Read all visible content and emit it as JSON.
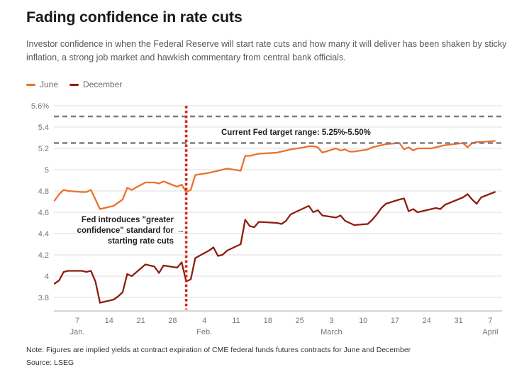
{
  "header": {
    "title": "Fading confidence in rate cuts",
    "subtitle": "Investor confidence in when the Federal Reserve will start rate cuts and how many it will deliver has been shaken by sticky inflation, a strong job market and hawkish commentary from central bank officials."
  },
  "legend": [
    {
      "label": "June",
      "color": "#EB712F"
    },
    {
      "label": "December",
      "color": "#8F1D12"
    }
  ],
  "annotations": {
    "target_range": "Current Fed target range: 5.25%-5.50%",
    "event_line1": "Fed introduces \"greater",
    "event_line2": "confidence\" standard for",
    "event_line3": "starting rate cuts",
    "arrow": "→"
  },
  "footer": {
    "note": "Note: Figures are implied yields at contract expiration of CME federal funds futures contracts for June and December",
    "source": "Source: LSEG"
  },
  "chart_data": {
    "type": "line",
    "unit": "implied yield, %",
    "x_axis_note": "days are calendar offsets from Jan 2",
    "ylim": [
      3.67,
      5.6
    ],
    "grid": true,
    "yticks": [
      {
        "label": "5.6%",
        "v": 5.6
      },
      {
        "label": "5.4",
        "v": 5.4
      },
      {
        "label": "5.2",
        "v": 5.2
      },
      {
        "label": "5",
        "v": 5.0
      },
      {
        "label": "4.8",
        "v": 4.8
      },
      {
        "label": "4.6",
        "v": 4.6
      },
      {
        "label": "4.4",
        "v": 4.4
      },
      {
        "label": "4.2",
        "v": 4.2
      },
      {
        "label": "4",
        "v": 4.0
      },
      {
        "label": "3.8",
        "v": 3.8
      }
    ],
    "xticks": [
      {
        "label": "7",
        "day": 5
      },
      {
        "label": "14",
        "day": 12
      },
      {
        "label": "21",
        "day": 19
      },
      {
        "label": "28",
        "day": 26
      },
      {
        "label": "4",
        "day": 33
      },
      {
        "label": "11",
        "day": 40
      },
      {
        "label": "18",
        "day": 47
      },
      {
        "label": "25",
        "day": 54
      },
      {
        "label": "3",
        "day": 61
      },
      {
        "label": "10",
        "day": 68
      },
      {
        "label": "17",
        "day": 75
      },
      {
        "label": "24",
        "day": 82
      },
      {
        "label": "31",
        "day": 89
      },
      {
        "label": "7",
        "day": 96
      }
    ],
    "month_labels": [
      {
        "label": "Jan.",
        "day": 5
      },
      {
        "label": "Feb.",
        "day": 33
      },
      {
        "label": "March",
        "day": 61
      },
      {
        "label": "April",
        "day": 96
      }
    ],
    "reference_lines": {
      "upper": 5.5,
      "lower": 5.25,
      "color": "#7D7D7D"
    },
    "event_line": {
      "day": 29,
      "date": "Jan 31",
      "color": "#D3291C"
    },
    "colors": {
      "grid": "#DDDDDD",
      "axis": "#A8A8A8"
    },
    "series": [
      {
        "name": "June",
        "color": "#EB712F",
        "points": [
          [
            0,
            4.71
          ],
          [
            1,
            4.77
          ],
          [
            2,
            4.81
          ],
          [
            3,
            4.8
          ],
          [
            6,
            4.79
          ],
          [
            7,
            4.79
          ],
          [
            8,
            4.81
          ],
          [
            9,
            4.72
          ],
          [
            10,
            4.63
          ],
          [
            13,
            4.66
          ],
          [
            14,
            4.69
          ],
          [
            15,
            4.72
          ],
          [
            16,
            4.83
          ],
          [
            17,
            4.81
          ],
          [
            20,
            4.88
          ],
          [
            21,
            4.88
          ],
          [
            22,
            4.88
          ],
          [
            23,
            4.87
          ],
          [
            24,
            4.89
          ],
          [
            27,
            4.84
          ],
          [
            28,
            4.86
          ],
          [
            29,
            4.79
          ],
          [
            30,
            4.81
          ],
          [
            31,
            4.95
          ],
          [
            34,
            4.97
          ],
          [
            35,
            4.98
          ],
          [
            36,
            4.99
          ],
          [
            37,
            5.0
          ],
          [
            38,
            5.01
          ],
          [
            41,
            4.99
          ],
          [
            42,
            5.13
          ],
          [
            43,
            5.13
          ],
          [
            44,
            5.14
          ],
          [
            45,
            5.15
          ],
          [
            49,
            5.16
          ],
          [
            50,
            5.17
          ],
          [
            51,
            5.18
          ],
          [
            52,
            5.19
          ],
          [
            55,
            5.21
          ],
          [
            56,
            5.22
          ],
          [
            57,
            5.22
          ],
          [
            58,
            5.21
          ],
          [
            59,
            5.16
          ],
          [
            62,
            5.2
          ],
          [
            63,
            5.18
          ],
          [
            64,
            5.19
          ],
          [
            65,
            5.17
          ],
          [
            66,
            5.17
          ],
          [
            69,
            5.19
          ],
          [
            70,
            5.21
          ],
          [
            71,
            5.22
          ],
          [
            72,
            5.23
          ],
          [
            73,
            5.24
          ],
          [
            76,
            5.25
          ],
          [
            77,
            5.19
          ],
          [
            78,
            5.21
          ],
          [
            79,
            5.18
          ],
          [
            80,
            5.2
          ],
          [
            83,
            5.2
          ],
          [
            84,
            5.21
          ],
          [
            85,
            5.22
          ],
          [
            86,
            5.23
          ],
          [
            90,
            5.25
          ],
          [
            91,
            5.21
          ],
          [
            92,
            5.25
          ],
          [
            93,
            5.26
          ],
          [
            94,
            5.26
          ],
          [
            97,
            5.27
          ]
        ]
      },
      {
        "name": "December",
        "color": "#8F1D12",
        "points": [
          [
            0,
            3.93
          ],
          [
            1,
            3.96
          ],
          [
            2,
            4.04
          ],
          [
            3,
            4.05
          ],
          [
            6,
            4.05
          ],
          [
            7,
            4.04
          ],
          [
            8,
            4.05
          ],
          [
            9,
            3.95
          ],
          [
            10,
            3.75
          ],
          [
            13,
            3.78
          ],
          [
            14,
            3.81
          ],
          [
            15,
            3.85
          ],
          [
            16,
            4.02
          ],
          [
            17,
            4.0
          ],
          [
            20,
            4.11
          ],
          [
            21,
            4.1
          ],
          [
            22,
            4.09
          ],
          [
            23,
            4.03
          ],
          [
            24,
            4.1
          ],
          [
            27,
            4.08
          ],
          [
            28,
            4.13
          ],
          [
            29,
            3.95
          ],
          [
            30,
            3.97
          ],
          [
            31,
            4.17
          ],
          [
            34,
            4.24
          ],
          [
            35,
            4.27
          ],
          [
            36,
            4.19
          ],
          [
            37,
            4.2
          ],
          [
            38,
            4.24
          ],
          [
            41,
            4.3
          ],
          [
            42,
            4.53
          ],
          [
            43,
            4.47
          ],
          [
            44,
            4.46
          ],
          [
            45,
            4.51
          ],
          [
            49,
            4.5
          ],
          [
            50,
            4.49
          ],
          [
            51,
            4.52
          ],
          [
            52,
            4.58
          ],
          [
            55,
            4.64
          ],
          [
            56,
            4.66
          ],
          [
            57,
            4.6
          ],
          [
            58,
            4.62
          ],
          [
            59,
            4.57
          ],
          [
            62,
            4.55
          ],
          [
            63,
            4.57
          ],
          [
            64,
            4.52
          ],
          [
            65,
            4.5
          ],
          [
            66,
            4.48
          ],
          [
            69,
            4.49
          ],
          [
            70,
            4.53
          ],
          [
            71,
            4.58
          ],
          [
            72,
            4.64
          ],
          [
            73,
            4.68
          ],
          [
            76,
            4.72
          ],
          [
            77,
            4.73
          ],
          [
            78,
            4.61
          ],
          [
            79,
            4.63
          ],
          [
            80,
            4.6
          ],
          [
            83,
            4.63
          ],
          [
            84,
            4.64
          ],
          [
            85,
            4.63
          ],
          [
            86,
            4.67
          ],
          [
            90,
            4.74
          ],
          [
            91,
            4.77
          ],
          [
            92,
            4.72
          ],
          [
            93,
            4.68
          ],
          [
            94,
            4.74
          ],
          [
            97,
            4.79
          ]
        ]
      }
    ]
  }
}
